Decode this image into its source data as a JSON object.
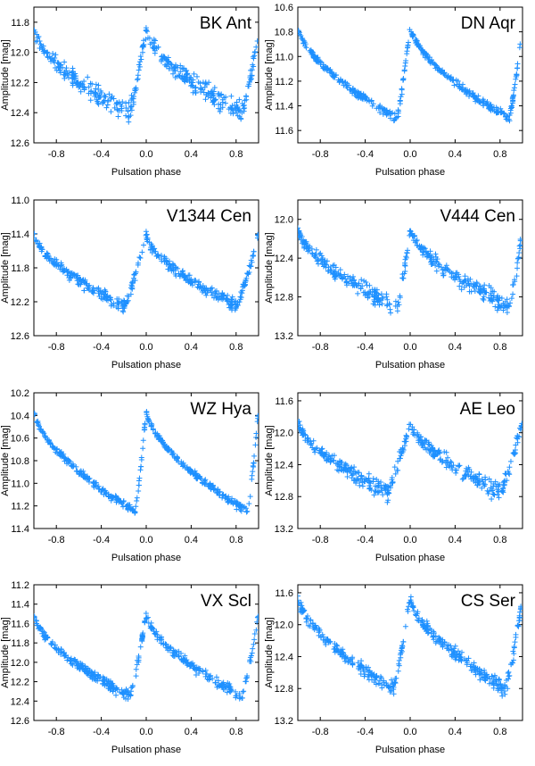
{
  "marker_color": "#1e90ff",
  "chart_data": [
    {
      "type": "scatter",
      "title": "BK Ant",
      "xlabel": "Pulsation phase",
      "ylabel": "Amplitude [mag]",
      "xlim": [
        -1.0,
        1.0
      ],
      "ylim": [
        12.6,
        11.7
      ],
      "xticks": [
        -0.8,
        -0.4,
        0.0,
        0.4,
        0.8
      ],
      "xtick_labels": [
        "-0.8",
        "-0.4",
        "0.0",
        "0.4",
        "0.8"
      ],
      "yticks": [
        11.8,
        12.0,
        12.2,
        12.4,
        12.6
      ],
      "ytick_labels": [
        "11.8",
        "12.0",
        "12.2",
        "12.4",
        "12.6"
      ],
      "light_curve": {
        "max_mag": 11.85,
        "min_mag": 12.4,
        "min_phase": -0.15,
        "scatter": 0.06
      }
    },
    {
      "type": "scatter",
      "title": "DN Aqr",
      "xlabel": "Pulsation phase",
      "ylabel": "Amplitude [mag]",
      "xlim": [
        -1.0,
        1.0
      ],
      "ylim": [
        11.7,
        10.6
      ],
      "xticks": [
        -0.8,
        -0.4,
        0.0,
        0.4,
        0.8
      ],
      "xtick_labels": [
        "-0.8",
        "-0.4",
        "0.0",
        "0.4",
        "0.8"
      ],
      "yticks": [
        10.6,
        10.8,
        11.0,
        11.2,
        11.4,
        11.6
      ],
      "ytick_labels": [
        "10.6",
        "10.8",
        "11.0",
        "11.2",
        "11.4",
        "11.6"
      ],
      "light_curve": {
        "max_mag": 10.75,
        "min_mag": 11.5,
        "min_phase": -0.12,
        "scatter": 0.03
      }
    },
    {
      "type": "scatter",
      "title": "V1344 Cen",
      "xlabel": "Pulsation phase",
      "ylabel": "Amplitude [mag]",
      "xlim": [
        -1.0,
        1.0
      ],
      "ylim": [
        12.6,
        11.0
      ],
      "xticks": [
        -0.8,
        -0.4,
        0.0,
        0.4,
        0.8
      ],
      "xtick_labels": [
        "-0.8",
        "-0.4",
        "0.0",
        "0.4",
        "0.8"
      ],
      "yticks": [
        11.0,
        11.4,
        11.8,
        12.2,
        12.6
      ],
      "ytick_labels": [
        "11.0",
        "11.4",
        "11.8",
        "12.2",
        "12.6"
      ],
      "light_curve": {
        "max_mag": 11.4,
        "min_mag": 12.25,
        "min_phase": -0.2,
        "scatter": 0.07
      }
    },
    {
      "type": "scatter",
      "title": "V444 Cen",
      "xlabel": "Pulsation phase",
      "ylabel": "Amplitude [mag]",
      "xlim": [
        -1.0,
        1.0
      ],
      "ylim": [
        13.2,
        11.8
      ],
      "xticks": [
        -0.8,
        -0.4,
        0.0,
        0.4,
        0.8
      ],
      "xtick_labels": [
        "-0.8",
        "-0.4",
        "0.0",
        "0.4",
        "0.8"
      ],
      "yticks": [
        12.0,
        12.4,
        12.8,
        13.2
      ],
      "ytick_labels": [
        "12.0",
        "12.4",
        "12.8",
        "13.2"
      ],
      "light_curve": {
        "max_mag": 12.1,
        "min_mag": 12.9,
        "min_phase": -0.12,
        "scatter": 0.08
      }
    },
    {
      "type": "scatter",
      "title": "WZ Hya",
      "xlabel": "Pulsation phase",
      "ylabel": "Amplitude [mag]",
      "xlim": [
        -1.0,
        1.0
      ],
      "ylim": [
        11.4,
        10.2
      ],
      "xticks": [
        -0.8,
        -0.4,
        0.0,
        0.4,
        0.8
      ],
      "xtick_labels": [
        "-0.8",
        "-0.4",
        "0.0",
        "0.4",
        "0.8"
      ],
      "yticks": [
        10.2,
        10.4,
        10.6,
        10.8,
        11.0,
        11.2,
        11.4
      ],
      "ytick_labels": [
        "10.2",
        "10.4",
        "10.6",
        "10.8",
        "11.0",
        "11.2",
        "11.4"
      ],
      "light_curve": {
        "max_mag": 10.35,
        "min_mag": 11.25,
        "min_phase": -0.1,
        "scatter": 0.03
      }
    },
    {
      "type": "scatter",
      "title": "AE Leo",
      "xlabel": "Pulsation phase",
      "ylabel": "Amplitude [mag]",
      "xlim": [
        -1.0,
        1.0
      ],
      "ylim": [
        13.2,
        11.5
      ],
      "xticks": [
        -0.8,
        -0.4,
        0.0,
        0.4,
        0.8
      ],
      "xtick_labels": [
        "-0.8",
        "-0.4",
        "0.0",
        "0.4",
        "0.8"
      ],
      "yticks": [
        11.6,
        12.0,
        12.4,
        12.8,
        13.2
      ],
      "ytick_labels": [
        "11.6",
        "12.0",
        "12.4",
        "12.8",
        "13.2"
      ],
      "light_curve": {
        "max_mag": 11.85,
        "min_mag": 12.75,
        "min_phase": -0.2,
        "scatter": 0.1
      }
    },
    {
      "type": "scatter",
      "title": "VX Scl",
      "xlabel": "Pulsation phase",
      "ylabel": "Amplitude [mag]",
      "xlim": [
        -1.0,
        1.0
      ],
      "ylim": [
        12.6,
        11.2
      ],
      "xticks": [
        -0.8,
        -0.4,
        0.0,
        0.4,
        0.8
      ],
      "xtick_labels": [
        "-0.8",
        "-0.4",
        "0.0",
        "0.4",
        "0.8"
      ],
      "yticks": [
        11.2,
        11.4,
        11.6,
        11.8,
        12.0,
        12.2,
        12.4,
        12.6
      ],
      "ytick_labels": [
        "11.2",
        "11.4",
        "11.6",
        "11.8",
        "12.0",
        "12.2",
        "12.4",
        "12.6"
      ],
      "light_curve": {
        "max_mag": 11.5,
        "min_mag": 12.35,
        "min_phase": -0.15,
        "scatter": 0.05
      }
    },
    {
      "type": "scatter",
      "title": "CS Ser",
      "xlabel": "Pulsation phase",
      "ylabel": "Amplitude [mag]",
      "xlim": [
        -1.0,
        1.0
      ],
      "ylim": [
        13.2,
        11.5
      ],
      "xticks": [
        -0.8,
        -0.4,
        0.0,
        0.4,
        0.8
      ],
      "xtick_labels": [
        "-0.8",
        "-0.4",
        "0.0",
        "0.4",
        "0.8"
      ],
      "yticks": [
        11.6,
        12.0,
        12.4,
        12.8,
        13.2
      ],
      "ytick_labels": [
        "11.6",
        "12.0",
        "12.4",
        "12.8",
        "13.2"
      ],
      "light_curve": {
        "max_mag": 11.65,
        "min_mag": 12.8,
        "min_phase": -0.15,
        "scatter": 0.08
      }
    }
  ]
}
